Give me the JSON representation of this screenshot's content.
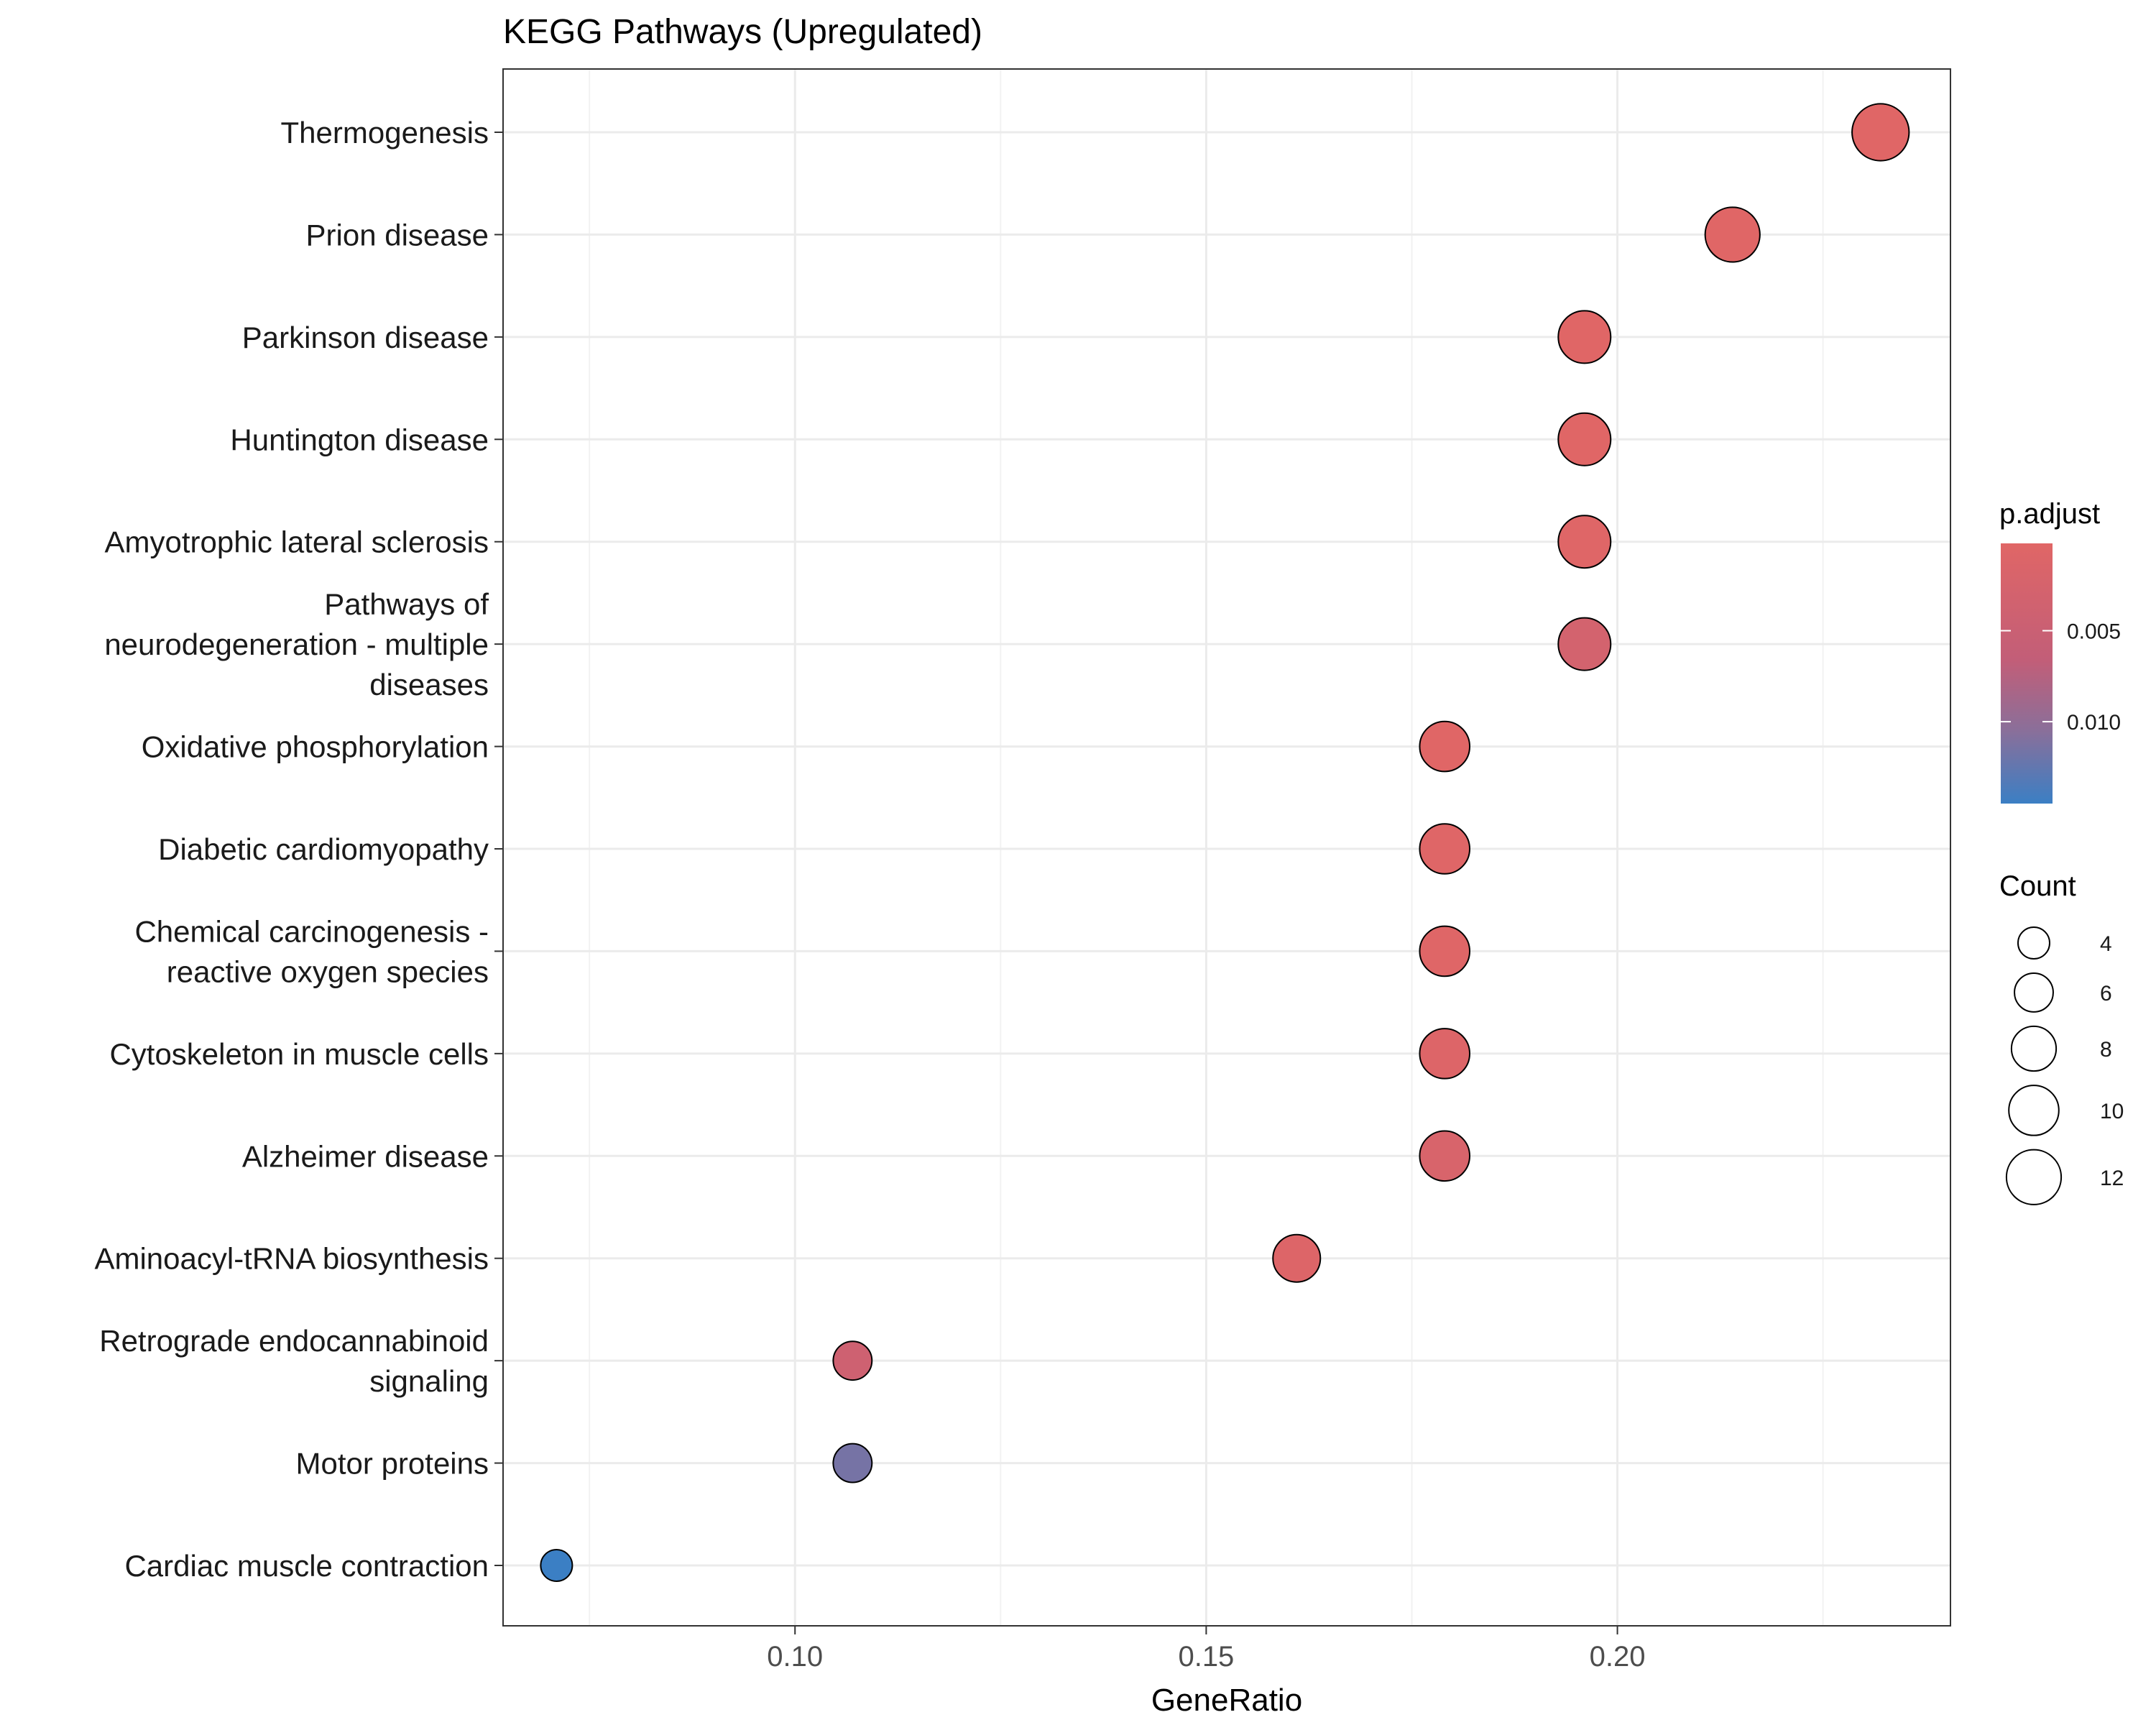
{
  "chart_data": {
    "type": "scatter",
    "title": "KEGG Pathways (Upregulated)",
    "xlabel": "GeneRatio",
    "ylabel": "",
    "xlim": [
      0.0645,
      0.2405
    ],
    "x_ticks": [
      0.1,
      0.15,
      0.2
    ],
    "x_tick_labels": [
      "0.10",
      "0.15",
      "0.20"
    ],
    "grid": true,
    "points": [
      {
        "label": [
          "Thermogenesis"
        ],
        "x": 0.232,
        "count": 13,
        "p_adjust": 0.0002
      },
      {
        "label": [
          "Prion disease"
        ],
        "x": 0.214,
        "count": 12,
        "p_adjust": 0.0002
      },
      {
        "label": [
          "Parkinson disease"
        ],
        "x": 0.196,
        "count": 11,
        "p_adjust": 0.0003
      },
      {
        "label": [
          "Huntington disease"
        ],
        "x": 0.196,
        "count": 11,
        "p_adjust": 0.0003
      },
      {
        "label": [
          "Amyotrophic lateral sclerosis"
        ],
        "x": 0.196,
        "count": 11,
        "p_adjust": 0.0005
      },
      {
        "label": [
          "Pathways of",
          "neurodegeneration - multiple",
          "diseases"
        ],
        "x": 0.196,
        "count": 11,
        "p_adjust": 0.003
      },
      {
        "label": [
          "Oxidative phosphorylation"
        ],
        "x": 0.179,
        "count": 10,
        "p_adjust": 0.0003
      },
      {
        "label": [
          "Diabetic cardiomyopathy"
        ],
        "x": 0.179,
        "count": 10,
        "p_adjust": 0.0005
      },
      {
        "label": [
          "Chemical carcinogenesis -",
          "reactive oxygen species"
        ],
        "x": 0.179,
        "count": 10,
        "p_adjust": 0.0005
      },
      {
        "label": [
          "Cytoskeleton in muscle cells"
        ],
        "x": 0.179,
        "count": 10,
        "p_adjust": 0.0008
      },
      {
        "label": [
          "Alzheimer disease"
        ],
        "x": 0.179,
        "count": 10,
        "p_adjust": 0.002
      },
      {
        "label": [
          "Aminoacyl-tRNA biosynthesis"
        ],
        "x": 0.161,
        "count": 9,
        "p_adjust": 0.0008
      },
      {
        "label": [
          "Retrograde endocannabinoid",
          "signaling"
        ],
        "x": 0.107,
        "count": 6,
        "p_adjust": 0.004
      },
      {
        "label": [
          "Motor proteins"
        ],
        "x": 0.107,
        "count": 6,
        "p_adjust": 0.0115
      },
      {
        "label": [
          "Cardiac muscle contraction"
        ],
        "x": 0.071,
        "count": 4,
        "p_adjust": 0.0145
      }
    ],
    "legend_color": {
      "title": "p.adjust",
      "range": [
        0.0002,
        0.0145
      ],
      "ticks": [
        0.005,
        0.01
      ],
      "tick_labels": [
        "0.005",
        "0.010"
      ],
      "low_color": "#e06666",
      "high_color": "#3b7fc4",
      "placement": "right"
    },
    "legend_size": {
      "title": "Count",
      "values": [
        4,
        6,
        8,
        10,
        12
      ],
      "labels": [
        "4",
        "6",
        "8",
        "10",
        "12"
      ],
      "placement": "right"
    }
  }
}
